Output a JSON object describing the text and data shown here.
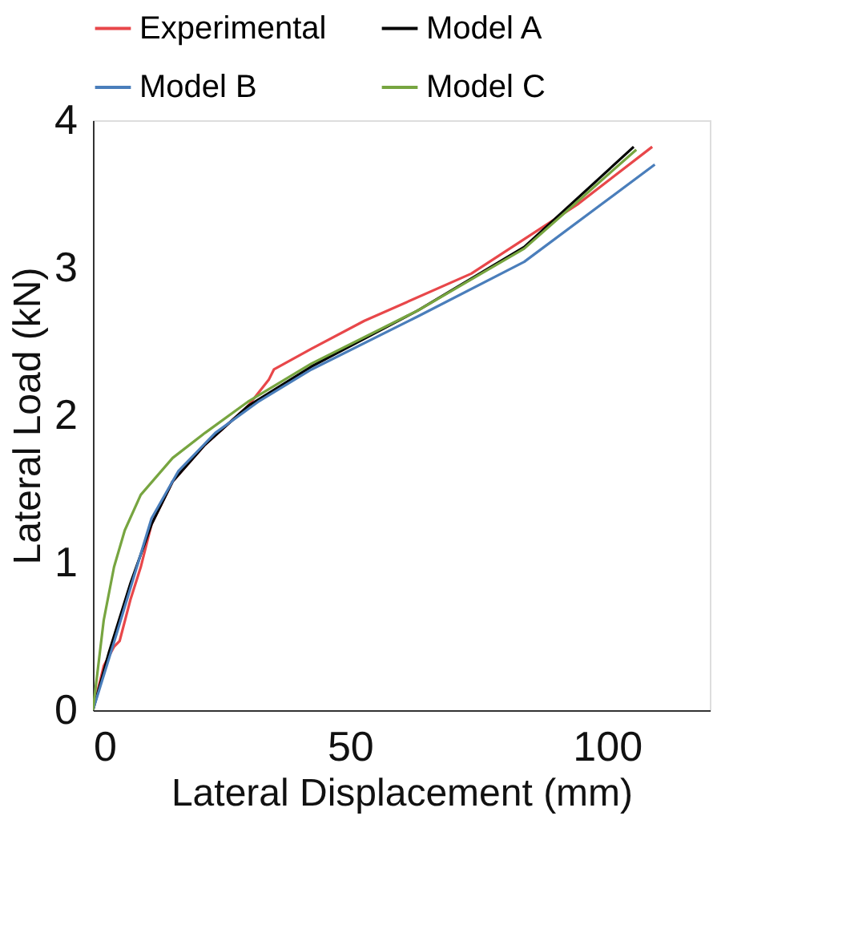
{
  "chart_data": {
    "type": "line",
    "xlabel": "Lateral Displacement (mm)",
    "ylabel": "Lateral Load (kN)",
    "xlim": [
      0,
      120
    ],
    "xticks": [
      0,
      50,
      100
    ],
    "ylim": [
      0,
      4
    ],
    "yticks": [
      0,
      1,
      2,
      3,
      4
    ],
    "grid": false,
    "legend": "top",
    "marker": "none",
    "line_style": "solid",
    "series": [
      {
        "name": "Experimental",
        "color": "#e8474a",
        "x": [
          0,
          2.1,
          4.1,
          5.2,
          7.3,
          9.3,
          11.4,
          15.5,
          21.8,
          30.1,
          34.2,
          35.2,
          42.5,
          52.8,
          73.6,
          94.3,
          108.8
        ],
        "values": [
          0,
          0.3,
          0.43,
          0.47,
          0.75,
          0.97,
          1.26,
          1.55,
          1.8,
          2.06,
          2.24,
          2.31,
          2.45,
          2.64,
          2.96,
          3.43,
          3.82
        ]
      },
      {
        "name": "Model A",
        "color": "#000000",
        "x": [
          0,
          3.1,
          7.3,
          11.4,
          15.5,
          21.8,
          30.1,
          42.5,
          63.2,
          83.9,
          105.2
        ],
        "values": [
          0,
          0.39,
          0.86,
          1.26,
          1.55,
          1.8,
          2.06,
          2.33,
          2.71,
          3.14,
          3.82
        ]
      },
      {
        "name": "Model B",
        "color": "#4a7ebb",
        "x": [
          0,
          4.1,
          11.4,
          16.6,
          23.8,
          32.1,
          42.5,
          63.2,
          83.9,
          109.3
        ],
        "values": [
          0,
          0.46,
          1.3,
          1.62,
          1.88,
          2.09,
          2.31,
          2.67,
          3.04,
          3.7
        ]
      },
      {
        "name": "Model C",
        "color": "#77a540",
        "x": [
          0,
          2.1,
          4.1,
          6.2,
          9.3,
          15.5,
          21.8,
          30.1,
          42.5,
          63.2,
          83.9,
          105.7
        ],
        "values": [
          0,
          0.61,
          0.97,
          1.22,
          1.46,
          1.71,
          1.88,
          2.09,
          2.35,
          2.71,
          3.13,
          3.8
        ]
      }
    ]
  }
}
